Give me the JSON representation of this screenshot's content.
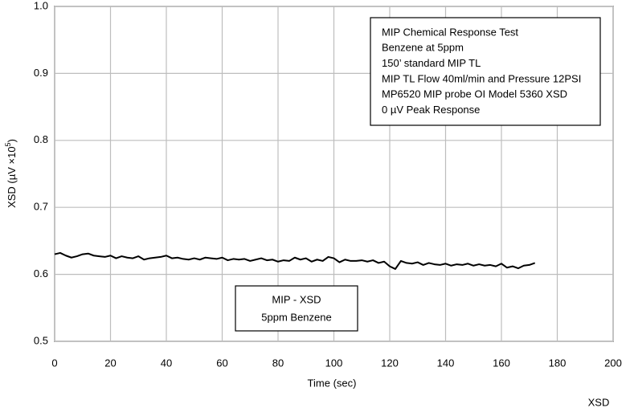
{
  "chart_data": {
    "type": "line",
    "x_label": "Time (sec)",
    "y_label": {
      "start": "XSD (µV ×10",
      "sup": "5",
      "end": ")"
    },
    "corner_label": "XSD",
    "annotation": [
      "MIP Chemical Response Test",
      "Benzene at 5ppm",
      "150’ standard MIP TL",
      "MIP TL Flow 40ml/min and Pressure 12PSI",
      "MP6520 MIP probe    OI Model 5360 XSD",
      "0 µV Peak Response"
    ],
    "legend_box": [
      "MIP - XSD",
      "5ppm Benzene"
    ],
    "xlim": [
      0,
      200
    ],
    "xticks": [
      0,
      20,
      40,
      60,
      80,
      100,
      120,
      140,
      160,
      180,
      200
    ],
    "ylim": [
      0.5,
      1
    ],
    "yticks": [
      0.5,
      0.6,
      0.7,
      0.8,
      0.9,
      {
        "value": 1,
        "label": "1.0"
      }
    ],
    "grid": true,
    "series": [
      {
        "color": "#000000",
        "x": [
          0,
          2,
          4,
          6,
          8,
          10,
          12,
          14,
          16,
          18,
          20,
          22,
          24,
          26,
          28,
          30,
          32,
          34,
          36,
          38,
          40,
          42,
          44,
          46,
          48,
          50,
          52,
          54,
          56,
          58,
          60,
          62,
          64,
          66,
          68,
          70,
          72,
          74,
          76,
          78,
          80,
          82,
          84,
          86,
          88,
          90,
          92,
          94,
          96,
          98,
          100,
          102,
          104,
          106,
          108,
          110,
          112,
          114,
          116,
          118,
          120,
          122,
          124,
          126,
          128,
          130,
          132,
          134,
          136,
          138,
          140,
          142,
          144,
          146,
          148,
          150,
          152,
          154,
          156,
          158,
          160,
          162,
          164,
          166,
          168,
          170,
          172
        ],
        "values": [
          0.63,
          0.632,
          0.628,
          0.625,
          0.627,
          0.63,
          0.631,
          0.628,
          0.627,
          0.626,
          0.628,
          0.624,
          0.627,
          0.625,
          0.624,
          0.627,
          0.622,
          0.624,
          0.625,
          0.626,
          0.628,
          0.624,
          0.625,
          0.623,
          0.622,
          0.624,
          0.622,
          0.625,
          0.624,
          0.623,
          0.625,
          0.621,
          0.623,
          0.622,
          0.623,
          0.62,
          0.622,
          0.624,
          0.621,
          0.622,
          0.619,
          0.621,
          0.62,
          0.625,
          0.622,
          0.624,
          0.619,
          0.622,
          0.62,
          0.626,
          0.624,
          0.618,
          0.622,
          0.62,
          0.62,
          0.621,
          0.619,
          0.621,
          0.617,
          0.619,
          0.612,
          0.608,
          0.62,
          0.617,
          0.616,
          0.618,
          0.614,
          0.617,
          0.615,
          0.614,
          0.616,
          0.613,
          0.615,
          0.614,
          0.616,
          0.613,
          0.615,
          0.613,
          0.614,
          0.612,
          0.616,
          0.61,
          0.612,
          0.609,
          0.613,
          0.614,
          0.617
        ]
      }
    ]
  }
}
